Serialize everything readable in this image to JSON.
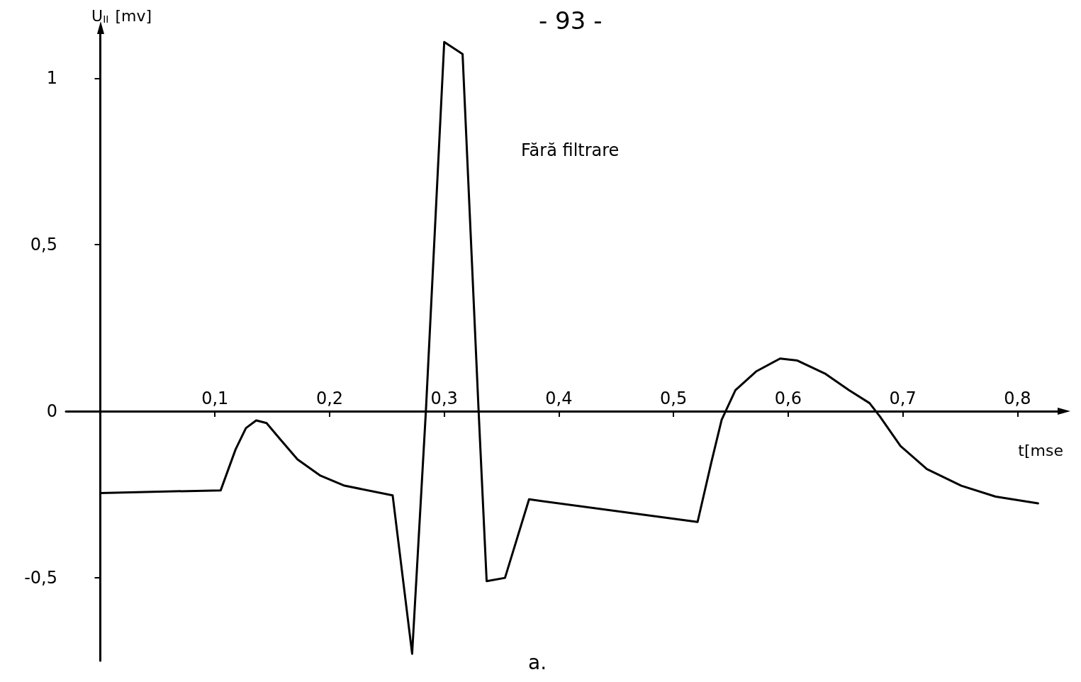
{
  "chart_data": {
    "type": "line",
    "xlabel": "t[mse",
    "ylabel": "U$_{II}$ [mv]",
    "annotations": [
      "Fără filtrare",
      "- 93 -",
      "a."
    ],
    "xlim": [
      -0.03,
      0.84
    ],
    "ylim": [
      -0.75,
      1.15
    ],
    "xticks": [
      {
        "value": 0.1,
        "label": "0,1"
      },
      {
        "value": 0.2,
        "label": "0,2"
      },
      {
        "value": 0.3,
        "label": "0,3"
      },
      {
        "value": 0.4,
        "label": "0,4"
      },
      {
        "value": 0.5,
        "label": "0,5"
      },
      {
        "value": 0.6,
        "label": "0,6"
      },
      {
        "value": 0.7,
        "label": "0,7"
      },
      {
        "value": 0.8,
        "label": "0,8"
      }
    ],
    "yticks": [
      {
        "value": -0.5,
        "label": "-0,5"
      },
      0,
      {
        "value": 0.5,
        "label": "0,5"
      },
      1
    ],
    "grid": false,
    "marker": "none",
    "line_style": "solid",
    "series": [
      {
        "color": "#000000",
        "x": [
          0,
          0.105,
          0.118,
          0.127,
          0.136,
          0.145,
          0.157,
          0.172,
          0.192,
          0.213,
          0.255,
          0.272,
          0.284,
          0.3,
          0.316,
          0.33,
          0.337,
          0.353,
          0.374,
          0.521,
          0.533,
          0.542,
          0.554,
          0.572,
          0.593,
          0.608,
          0.632,
          0.653,
          0.671,
          0.68,
          0.698,
          0.721,
          0.751,
          0.781,
          0.818
        ],
        "values": [
          -0.246,
          -0.238,
          -0.115,
          -0.051,
          -0.028,
          -0.036,
          -0.085,
          -0.145,
          -0.194,
          -0.224,
          -0.253,
          -0.729,
          0,
          1.109,
          1.073,
          0,
          -0.511,
          -0.501,
          -0.265,
          -0.333,
          -0.154,
          -0.026,
          0.063,
          0.119,
          0.158,
          0.152,
          0.113,
          0.063,
          0.024,
          -0.016,
          -0.105,
          -0.174,
          -0.224,
          -0.257,
          -0.277
        ]
      }
    ]
  }
}
